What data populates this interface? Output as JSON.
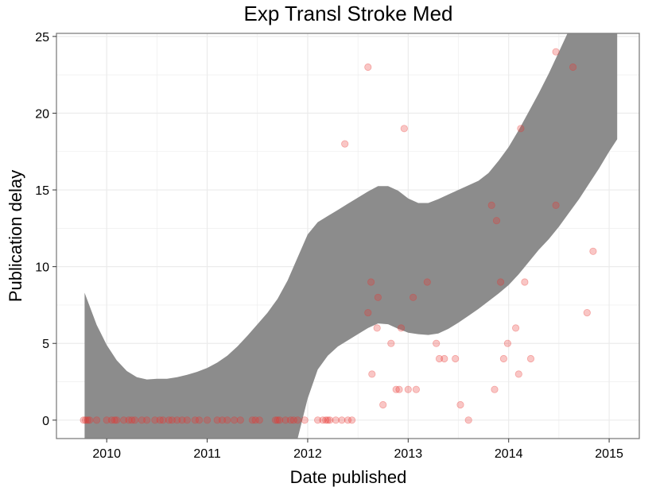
{
  "chart_data": {
    "type": "scatter",
    "title": "Exp Transl Stroke Med",
    "xlabel": "Date published",
    "ylabel": "Publication delay",
    "xlim": [
      2009.5,
      2015.3
    ],
    "ylim": [
      -1.2,
      25.2
    ],
    "x_ticks": [
      2010,
      2011,
      2012,
      2013,
      2014,
      2015
    ],
    "x_tick_labels": [
      "2010",
      "2011",
      "2012",
      "2013",
      "2014",
      "2015"
    ],
    "y_ticks": [
      0,
      5,
      10,
      15,
      20,
      25
    ],
    "y_tick_labels": [
      "0",
      "5",
      "10",
      "15",
      "20",
      "25"
    ],
    "grid": true,
    "colors": {
      "points": "#e8332e",
      "band": "#8c8c8c",
      "panel_border": "#7f7f7f",
      "grid": "#ebebeb"
    },
    "points": [
      {
        "x": 2009.77,
        "y": 0
      },
      {
        "x": 2009.79,
        "y": 0
      },
      {
        "x": 2009.81,
        "y": 0
      },
      {
        "x": 2009.83,
        "y": 0
      },
      {
        "x": 2009.9,
        "y": 0
      },
      {
        "x": 2010.0,
        "y": 0
      },
      {
        "x": 2010.05,
        "y": 0
      },
      {
        "x": 2010.08,
        "y": 0
      },
      {
        "x": 2010.1,
        "y": 0
      },
      {
        "x": 2010.17,
        "y": 0
      },
      {
        "x": 2010.22,
        "y": 0
      },
      {
        "x": 2010.25,
        "y": 0
      },
      {
        "x": 2010.28,
        "y": 0
      },
      {
        "x": 2010.35,
        "y": 0
      },
      {
        "x": 2010.4,
        "y": 0
      },
      {
        "x": 2010.48,
        "y": 0
      },
      {
        "x": 2010.53,
        "y": 0
      },
      {
        "x": 2010.56,
        "y": 0
      },
      {
        "x": 2010.62,
        "y": 0
      },
      {
        "x": 2010.65,
        "y": 0
      },
      {
        "x": 2010.7,
        "y": 0
      },
      {
        "x": 2010.75,
        "y": 0
      },
      {
        "x": 2010.8,
        "y": 0
      },
      {
        "x": 2010.88,
        "y": 0
      },
      {
        "x": 2010.92,
        "y": 0
      },
      {
        "x": 2011.0,
        "y": 0
      },
      {
        "x": 2011.1,
        "y": 0
      },
      {
        "x": 2011.15,
        "y": 0
      },
      {
        "x": 2011.2,
        "y": 0
      },
      {
        "x": 2011.27,
        "y": 0
      },
      {
        "x": 2011.33,
        "y": 0
      },
      {
        "x": 2011.45,
        "y": 0
      },
      {
        "x": 2011.48,
        "y": 0
      },
      {
        "x": 2011.52,
        "y": 0
      },
      {
        "x": 2011.68,
        "y": 0
      },
      {
        "x": 2011.7,
        "y": 0
      },
      {
        "x": 2011.72,
        "y": 0
      },
      {
        "x": 2011.78,
        "y": 0
      },
      {
        "x": 2011.83,
        "y": 0
      },
      {
        "x": 2011.86,
        "y": 0
      },
      {
        "x": 2011.9,
        "y": 0
      },
      {
        "x": 2011.97,
        "y": 0
      },
      {
        "x": 2012.1,
        "y": 0
      },
      {
        "x": 2012.15,
        "y": 0
      },
      {
        "x": 2012.18,
        "y": 0
      },
      {
        "x": 2012.2,
        "y": 0
      },
      {
        "x": 2012.22,
        "y": 0
      },
      {
        "x": 2012.28,
        "y": 0
      },
      {
        "x": 2012.34,
        "y": 0
      },
      {
        "x": 2012.4,
        "y": 0
      },
      {
        "x": 2012.44,
        "y": 0
      },
      {
        "x": 2012.37,
        "y": 18
      },
      {
        "x": 2012.6,
        "y": 23
      },
      {
        "x": 2012.6,
        "y": 7
      },
      {
        "x": 2012.63,
        "y": 9
      },
      {
        "x": 2012.64,
        "y": 3
      },
      {
        "x": 2012.69,
        "y": 6
      },
      {
        "x": 2012.7,
        "y": 8
      },
      {
        "x": 2012.75,
        "y": 1
      },
      {
        "x": 2012.83,
        "y": 5
      },
      {
        "x": 2012.88,
        "y": 2
      },
      {
        "x": 2012.91,
        "y": 2
      },
      {
        "x": 2012.93,
        "y": 6
      },
      {
        "x": 2012.96,
        "y": 19
      },
      {
        "x": 2013.0,
        "y": 2
      },
      {
        "x": 2013.05,
        "y": 8
      },
      {
        "x": 2013.08,
        "y": 2
      },
      {
        "x": 2013.19,
        "y": 9
      },
      {
        "x": 2013.28,
        "y": 5
      },
      {
        "x": 2013.31,
        "y": 4
      },
      {
        "x": 2013.36,
        "y": 4
      },
      {
        "x": 2013.47,
        "y": 4
      },
      {
        "x": 2013.52,
        "y": 1
      },
      {
        "x": 2013.6,
        "y": 0
      },
      {
        "x": 2013.83,
        "y": 14
      },
      {
        "x": 2013.86,
        "y": 2
      },
      {
        "x": 2013.88,
        "y": 13
      },
      {
        "x": 2013.92,
        "y": 9
      },
      {
        "x": 2013.95,
        "y": 4
      },
      {
        "x": 2013.99,
        "y": 5
      },
      {
        "x": 2014.07,
        "y": 6
      },
      {
        "x": 2014.1,
        "y": 3
      },
      {
        "x": 2014.12,
        "y": 19
      },
      {
        "x": 2014.16,
        "y": 9
      },
      {
        "x": 2014.22,
        "y": 4
      },
      {
        "x": 2014.47,
        "y": 24
      },
      {
        "x": 2014.47,
        "y": 14
      },
      {
        "x": 2014.64,
        "y": 23
      },
      {
        "x": 2014.78,
        "y": 7
      },
      {
        "x": 2014.84,
        "y": 11
      }
    ],
    "smooth_band": {
      "x": [
        2009.78,
        2009.9,
        2010.0,
        2010.1,
        2010.2,
        2010.3,
        2010.4,
        2010.5,
        2010.6,
        2010.7,
        2010.8,
        2010.9,
        2011.0,
        2011.1,
        2011.2,
        2011.3,
        2011.4,
        2011.5,
        2011.6,
        2011.7,
        2011.8,
        2011.9,
        2012.0,
        2012.1,
        2012.2,
        2012.3,
        2012.4,
        2012.5,
        2012.6,
        2012.7,
        2012.8,
        2012.9,
        2013.0,
        2013.1,
        2013.2,
        2013.3,
        2013.4,
        2013.5,
        2013.6,
        2013.7,
        2013.8,
        2013.9,
        2014.0,
        2014.1,
        2014.2,
        2014.3,
        2014.4,
        2014.5,
        2014.6,
        2014.7,
        2014.8,
        2014.9,
        2015.0,
        2015.08
      ],
      "upper": [
        8.3,
        6.2,
        4.9,
        3.9,
        3.2,
        2.8,
        2.65,
        2.7,
        2.7,
        2.8,
        2.95,
        3.15,
        3.4,
        3.75,
        4.2,
        4.8,
        5.5,
        6.25,
        7.0,
        7.9,
        9.1,
        10.6,
        12.1,
        12.9,
        13.3,
        13.7,
        14.1,
        14.5,
        14.9,
        15.25,
        15.25,
        14.95,
        14.45,
        14.15,
        14.15,
        14.4,
        14.7,
        15.0,
        15.3,
        15.6,
        16.1,
        16.9,
        17.8,
        18.9,
        20.1,
        21.3,
        22.6,
        24.0,
        25.4,
        26.5,
        27.5,
        28.5,
        29.5,
        30.5
      ],
      "lower": [
        -3,
        -3,
        -3,
        -3,
        -3,
        -3,
        -3,
        -3,
        -3,
        -3,
        -3,
        -3,
        -3,
        -3,
        -3,
        -3,
        -3,
        -3,
        -3,
        -3,
        -3,
        -1.2,
        1.4,
        3.3,
        4.2,
        4.8,
        5.2,
        5.6,
        6.0,
        6.3,
        6.25,
        5.95,
        5.7,
        5.6,
        5.55,
        5.65,
        5.95,
        6.35,
        6.8,
        7.25,
        7.75,
        8.25,
        8.8,
        9.5,
        10.3,
        11.1,
        11.8,
        12.6,
        13.5,
        14.4,
        15.4,
        16.4,
        17.5,
        18.3
      ]
    }
  }
}
